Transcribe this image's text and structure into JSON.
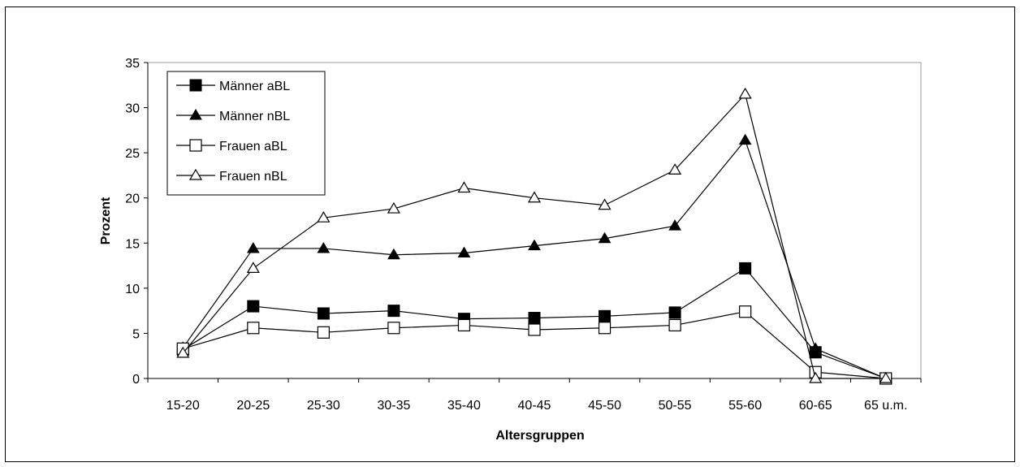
{
  "chart_data": {
    "type": "line",
    "title": "",
    "xlabel": "Altersgruppen",
    "ylabel": "Prozent",
    "ylim": [
      0,
      35
    ],
    "yticks": [
      "0",
      "5",
      "10",
      "15",
      "20",
      "25",
      "30",
      "35"
    ],
    "categories": [
      "15-20",
      "20-25",
      "25-30",
      "30-35",
      "35-40",
      "40-45",
      "45-50",
      "50-55",
      "55-60",
      "60-65",
      "65 u.m."
    ],
    "grid": false,
    "legend_position": "top-left",
    "series": [
      {
        "name": "Männer aBL",
        "marker": "square-filled",
        "color": "#000000",
        "values": [
          3.2,
          8.0,
          7.2,
          7.5,
          6.6,
          6.7,
          6.9,
          7.3,
          12.2,
          2.9,
          0.0
        ]
      },
      {
        "name": "Männer nBL",
        "marker": "triangle-filled",
        "color": "#000000",
        "values": [
          3.4,
          14.4,
          14.4,
          13.7,
          13.9,
          14.7,
          15.5,
          16.9,
          26.4,
          3.3,
          0.0
        ]
      },
      {
        "name": "Frauen aBL",
        "marker": "square-open",
        "color": "#000000",
        "values": [
          3.3,
          5.6,
          5.1,
          5.6,
          5.9,
          5.4,
          5.6,
          5.9,
          7.4,
          0.7,
          0.0
        ]
      },
      {
        "name": "Frauen nBL",
        "marker": "triangle-open",
        "color": "#000000",
        "values": [
          2.8,
          12.2,
          17.8,
          18.8,
          21.1,
          20.0,
          19.2,
          23.1,
          31.5,
          0.0,
          0.0
        ]
      }
    ]
  }
}
